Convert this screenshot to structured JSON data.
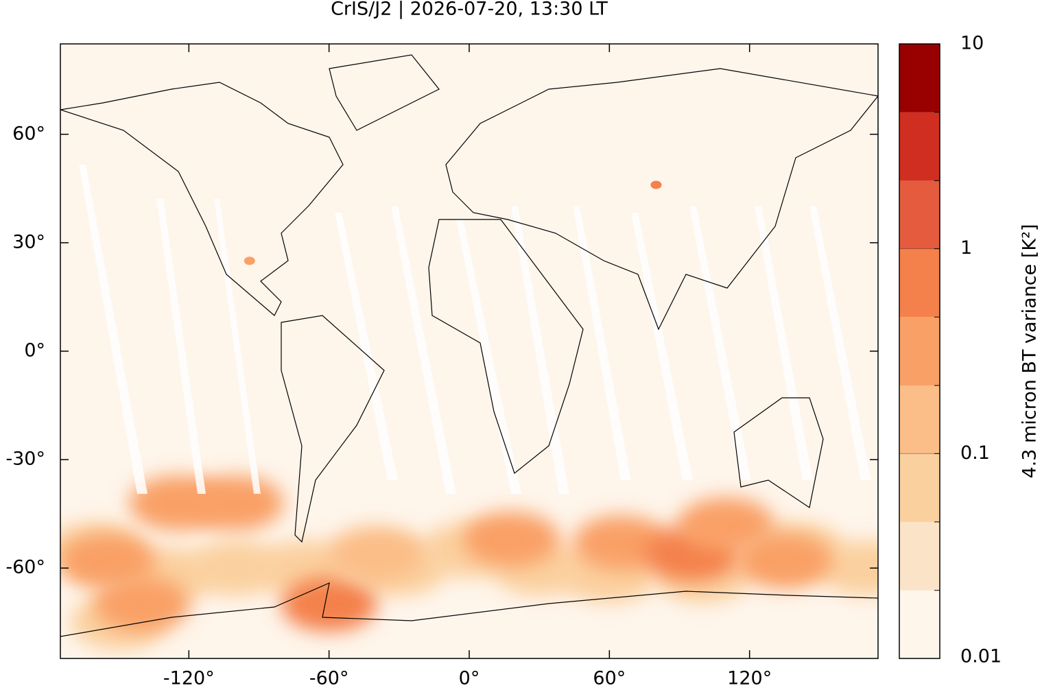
{
  "chart_data": {
    "type": "map",
    "title": "CrIS/J2 | 2026-07-20, 13:30 LT",
    "xlim": [
      -175,
      175
    ],
    "ylim": [
      -85,
      85
    ],
    "xticks": [
      {
        "value": -120,
        "label": "-120°"
      },
      {
        "value": -60,
        "label": "-60°"
      },
      {
        "value": 0,
        "label": "0°"
      },
      {
        "value": 60,
        "label": "60°"
      },
      {
        "value": 120,
        "label": "120°"
      }
    ],
    "yticks": [
      {
        "value": 60,
        "label": "60°"
      },
      {
        "value": 30,
        "label": "30°"
      },
      {
        "value": 0,
        "label": "0°"
      },
      {
        "value": -30,
        "label": "-30°"
      },
      {
        "value": -60,
        "label": "-60°"
      }
    ],
    "colorbar": {
      "label": "4.3 micron BT variance [K²]",
      "log_scale": true,
      "lim": [
        0.01,
        10
      ],
      "ticks": [
        0.01,
        0.1,
        1,
        10
      ],
      "levels": [
        0.01,
        0.0215,
        0.0464,
        0.1,
        0.215,
        0.464,
        1,
        2.15,
        4.64,
        10
      ],
      "colors": [
        "#fef5eb",
        "#fbe3c8",
        "#fbd09f",
        "#fbbe88",
        "#f9a066",
        "#f4814c",
        "#e45b3e",
        "#cf2e20",
        "#990000"
      ]
    },
    "field": [
      {
        "lon": -160,
        "lat": -55,
        "value": 0.08
      },
      {
        "lon": -130,
        "lat": -62,
        "value": 0.08
      },
      {
        "lon": -100,
        "lat": -60,
        "value": 0.08
      },
      {
        "lon": -70,
        "lat": -60,
        "value": 0.06
      },
      {
        "lon": -30,
        "lat": -60,
        "value": 0.06
      },
      {
        "lon": 0,
        "lat": -55,
        "value": 0.05
      },
      {
        "lon": 30,
        "lat": -60,
        "value": 0.06
      },
      {
        "lon": 60,
        "lat": -62,
        "value": 0.08
      },
      {
        "lon": 100,
        "lat": -62,
        "value": 0.08
      },
      {
        "lon": 140,
        "lat": -55,
        "value": 0.08
      },
      {
        "lon": 170,
        "lat": -60,
        "value": 0.06
      },
      {
        "lon": -150,
        "lat": -75,
        "value": 0.06
      },
      {
        "lon": -125,
        "lat": -42,
        "value": 0.3
      },
      {
        "lon": -100,
        "lat": -42,
        "value": 0.3
      },
      {
        "lon": -155,
        "lat": -58,
        "value": 0.3
      },
      {
        "lon": -140,
        "lat": -70,
        "value": 0.4
      },
      {
        "lon": -60,
        "lat": -70,
        "value": 0.5
      },
      {
        "lon": -40,
        "lat": -56,
        "value": 0.2
      },
      {
        "lon": 18,
        "lat": -52,
        "value": 0.25
      },
      {
        "lon": 65,
        "lat": -53,
        "value": 0.4
      },
      {
        "lon": 95,
        "lat": -56,
        "value": 0.5
      },
      {
        "lon": 110,
        "lat": -48,
        "value": 0.4
      },
      {
        "lon": 135,
        "lat": -58,
        "value": 0.4
      },
      {
        "lon": 80,
        "lat": 46,
        "value": 0.5
      },
      {
        "lon": -94,
        "lat": 25,
        "value": 0.4
      }
    ]
  }
}
